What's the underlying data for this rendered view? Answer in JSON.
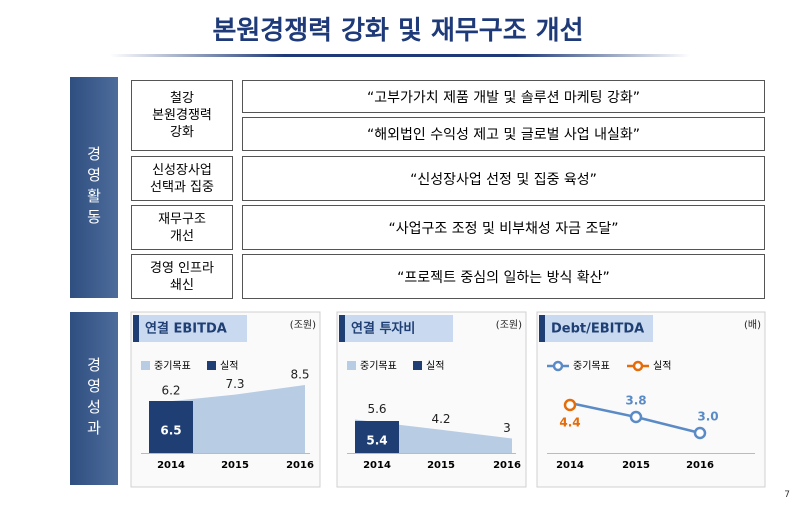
{
  "title": "본원경쟁력 강화 및 재무구조 개선",
  "activities": {
    "label": "경영활동",
    "rows": [
      {
        "label": "철강\n본원경쟁력\n강화",
        "items": [
          "“고부가가치 제품 개발 및 솔루션 마케팅 강화”",
          "“해외법인 수익성 제고 및 글로벌 사업 내실화”"
        ]
      },
      {
        "label": "신성장사업\n선택과 집중",
        "items": [
          "“신성장사업 선정 및 집중 육성”"
        ]
      },
      {
        "label": "재무구조\n개선",
        "items": [
          "“사업구조 조정 및 비부채성 자금 조달”"
        ]
      },
      {
        "label": "경영 인프라\n쇄신",
        "items": [
          "“프로젝트 중심의 일하는 방식 확산”"
        ]
      }
    ]
  },
  "results": {
    "label": "경영성과"
  },
  "page_number": "7",
  "chart_data": [
    {
      "type": "area",
      "title": "연결 EBITDA",
      "unit": "(조원)",
      "categories": [
        "2014",
        "2015",
        "2016"
      ],
      "ylim": [
        0,
        10
      ],
      "series": [
        {
          "name": "중기목표",
          "style": "area",
          "color": "#b8cce4",
          "values": [
            6.2,
            7.3,
            8.5
          ]
        },
        {
          "name": "실적",
          "style": "bar",
          "color": "#1f3f74",
          "values": [
            6.5,
            null,
            null
          ]
        }
      ]
    },
    {
      "type": "area",
      "title": "연결 투자비",
      "unit": "(조원)",
      "categories": [
        "2014",
        "2015",
        "2016"
      ],
      "ylim": [
        1,
        12
      ],
      "series": [
        {
          "name": "중기목표",
          "style": "area",
          "color": "#b8cce4",
          "values": [
            5.6,
            4.2,
            3.0
          ]
        },
        {
          "name": "실적",
          "style": "bar",
          "color": "#1f3f74",
          "values": [
            5.4,
            null,
            null
          ]
        }
      ]
    },
    {
      "type": "line",
      "title": "Debt/EBITDA",
      "unit": "(배)",
      "categories": [
        "2014",
        "2015",
        "2016"
      ],
      "ylim": [
        2,
        6
      ],
      "series": [
        {
          "name": "중기목표",
          "color": "#5b8bc6",
          "values": [
            4.5,
            3.8,
            3.0
          ],
          "value_labels": [
            null,
            "3.8",
            "3.0"
          ]
        },
        {
          "name": "실적",
          "color": "#e46c0a",
          "values": [
            4.4,
            null,
            null
          ]
        }
      ]
    }
  ]
}
